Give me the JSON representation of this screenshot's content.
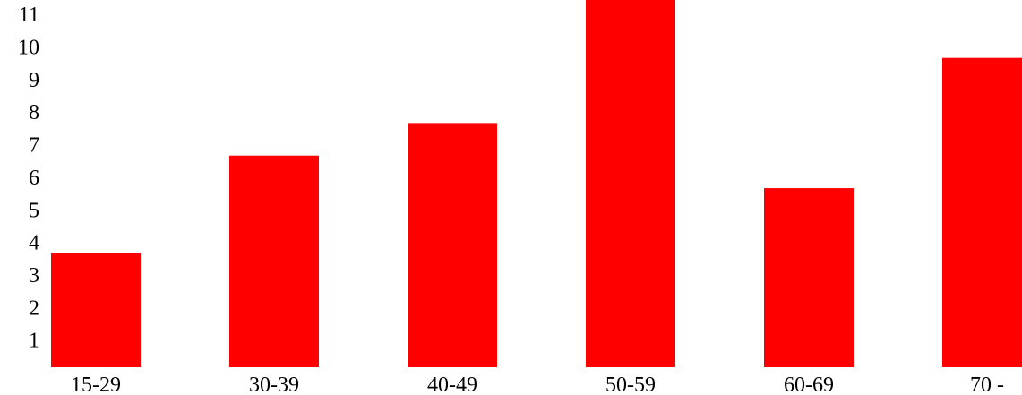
{
  "chart_data": {
    "type": "bar",
    "categories": [
      "15-29",
      "30-39",
      "40-49",
      "50-59",
      "60-69",
      "70 -"
    ],
    "values": [
      3.5,
      6.5,
      7.5,
      11.5,
      5.5,
      9.5
    ],
    "yticks": [
      "1",
      "2",
      "3",
      "4",
      "5",
      "6",
      "7",
      "8",
      "9",
      "10",
      "11"
    ],
    "ylim": [
      0,
      11.5
    ],
    "title": "",
    "xlabel": "",
    "ylabel": "",
    "grid": false,
    "bar_color": "#ff0000"
  }
}
